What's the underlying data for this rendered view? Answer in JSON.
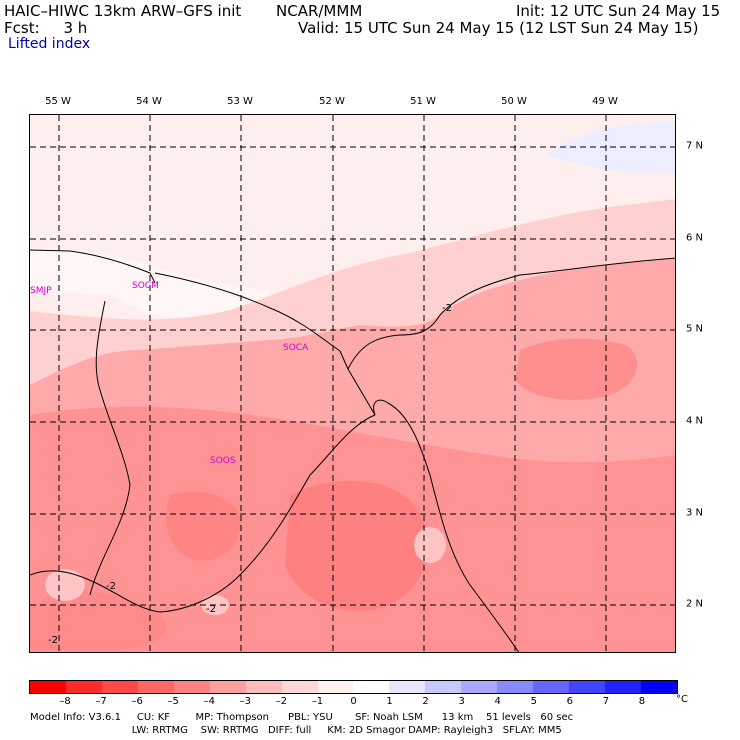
{
  "header": {
    "model": "HAIC–HIWC 13km ARW–GFS init",
    "center": "NCAR/MMM",
    "init": "Init: 12 UTC Sun 24 May 15",
    "fcst": "Fcst:     3 h",
    "valid": "Valid: 15 UTC Sun 24 May 15 (12 LST Sun 24 May 15)",
    "field": "Lifted index"
  },
  "map": {
    "lon_labels": [
      "55 W",
      "54 W",
      "53 W",
      "52 W",
      "51 W",
      "50 W",
      "49 W"
    ],
    "lat_labels": [
      "7 N",
      "6 N",
      "5 N",
      "4 N",
      "3 N",
      "2 N"
    ],
    "stations": [
      "SMJP",
      "SOCM",
      "SOCA",
      "SOOS"
    ],
    "contour_labels": [
      "-2",
      "-2",
      "-2",
      "-2"
    ]
  },
  "scale": {
    "colors": [
      "#ff0000",
      "#ff2a2a",
      "#ff4848",
      "#ff6666",
      "#ff8282",
      "#ffa0a0",
      "#ffbcbc",
      "#ffd6d6",
      "#fff0f0",
      "#ffffff",
      "#e6e6ff",
      "#c8c8ff",
      "#a8a8ff",
      "#8888ff",
      "#6666ff",
      "#4444ff",
      "#2222ff",
      "#0000ff"
    ],
    "ticks": [
      "–8",
      "–7",
      "–6",
      "–5",
      "–4",
      "–3",
      "–2",
      "–1",
      "0",
      "1",
      "2",
      "3",
      "4",
      "5",
      "6",
      "7",
      "8"
    ],
    "unit": "°C"
  },
  "footer": {
    "line1": "Model Info: V3.6.1     CU: KF        MP: Thompson      PBL: YSU       SF: Noah LSM      13 km    51 levels   60 sec",
    "line2": "                                LW: RRTMG    SW: RRTMG   DIFF: full     KM: 2D Smagor DAMP: Rayleigh3   SFLAY: MM5"
  }
}
